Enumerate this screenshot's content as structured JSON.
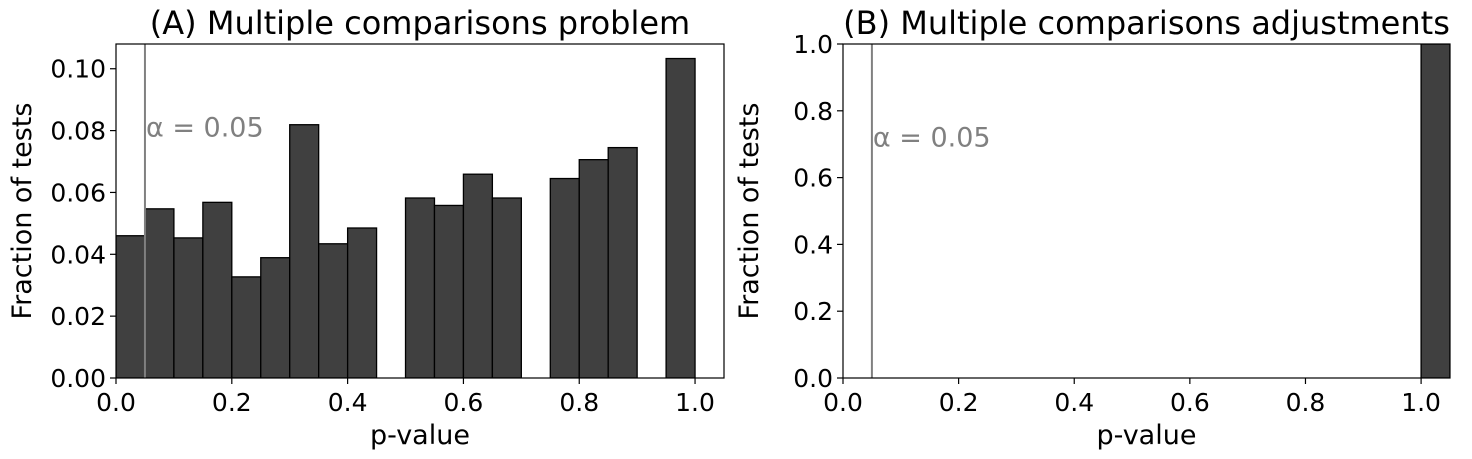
{
  "chart_data": [
    {
      "type": "bar",
      "title": "(A) Multiple comparisons problem",
      "xlabel": "p-value",
      "ylabel": "Fraction of tests",
      "xlim": [
        0.0,
        1.05
      ],
      "ylim": [
        0.0,
        0.108
      ],
      "xticks": [
        "0.0",
        "0.2",
        "0.4",
        "0.6",
        "0.8",
        "1.0"
      ],
      "yticks": [
        "0.00",
        "0.02",
        "0.04",
        "0.06",
        "0.08",
        "0.10"
      ],
      "bin_width": 0.05,
      "bin_starts": [
        0.0,
        0.05,
        0.1,
        0.15,
        0.2,
        0.25,
        0.3,
        0.35,
        0.4,
        0.45,
        0.5,
        0.55,
        0.6,
        0.65,
        0.7,
        0.75,
        0.8,
        0.85,
        0.9,
        0.95
      ],
      "values": [
        0.046,
        0.0547,
        0.0453,
        0.0568,
        0.0327,
        0.0389,
        0.0819,
        0.0434,
        0.0485,
        0.0,
        0.0582,
        0.0558,
        0.0659,
        0.0582,
        0.0,
        0.0645,
        0.0706,
        0.0745,
        0.0,
        0.1033
      ],
      "bar_color": "#404040",
      "vline": {
        "x": 0.05,
        "label": "α = 0.05",
        "label_y": 0.081,
        "color": "#808080"
      },
      "grid": false
    },
    {
      "type": "bar",
      "title": "(B) Multiple comparisons adjustments",
      "xlabel": "p-value",
      "ylabel": "Fraction of tests",
      "xlim": [
        0.0,
        1.05
      ],
      "ylim": [
        0.0,
        1.0
      ],
      "xticks": [
        "0.0",
        "0.2",
        "0.4",
        "0.6",
        "0.8",
        "1.0"
      ],
      "yticks": [
        "0.0",
        "0.2",
        "0.4",
        "0.6",
        "0.8",
        "1.0"
      ],
      "bin_width": 0.05,
      "bin_starts": [
        0.0,
        0.05,
        0.1,
        0.15,
        0.2,
        0.25,
        0.3,
        0.35,
        0.4,
        0.45,
        0.5,
        0.55,
        0.6,
        0.65,
        0.7,
        0.75,
        0.8,
        0.85,
        0.9,
        0.95,
        1.0
      ],
      "values": [
        0.0,
        0.0,
        0.0,
        0.0,
        0.0,
        0.0,
        0.0,
        0.0,
        0.0,
        0.0,
        0.0,
        0.0,
        0.0,
        0.0,
        0.0,
        0.0,
        0.0,
        0.0,
        0.0,
        0.0,
        1.0
      ],
      "bar_color": "#404040",
      "vline": {
        "x": 0.05,
        "label": "α = 0.05",
        "label_y": 0.72,
        "color": "#808080"
      },
      "grid": false
    }
  ]
}
